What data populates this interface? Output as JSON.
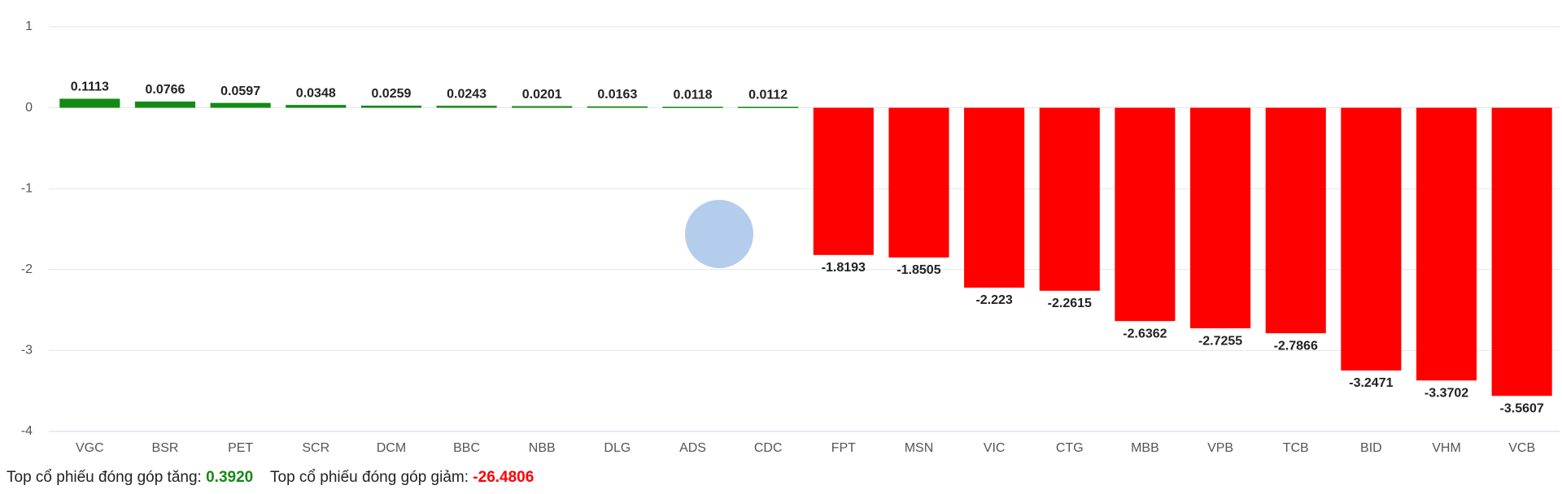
{
  "chart_data": {
    "type": "bar",
    "categories": [
      "VGC",
      "BSR",
      "PET",
      "SCR",
      "DCM",
      "BBC",
      "NBB",
      "DLG",
      "ADS",
      "CDC",
      "FPT",
      "MSN",
      "VIC",
      "CTG",
      "MBB",
      "VPB",
      "TCB",
      "BID",
      "VHM",
      "VCB"
    ],
    "values": [
      0.1113,
      0.0766,
      0.0597,
      0.0348,
      0.0259,
      0.0243,
      0.0201,
      0.0163,
      0.0118,
      0.0112,
      -1.8193,
      -1.8505,
      -2.223,
      -2.2615,
      -2.6362,
      -2.7255,
      -2.7866,
      -3.2471,
      -3.3702,
      -3.5607
    ],
    "positive_color": "#138a13",
    "negative_color": "#ff0000",
    "ylim": [
      -4,
      1
    ],
    "yticks": [
      -4,
      -3,
      -2,
      -1,
      0,
      1
    ],
    "grid": true
  },
  "footer": {
    "gain_label": "Top cổ phiếu đóng góp tăng:",
    "gain_value": "0.3920",
    "loss_label": "Top cổ phiếu đóng góp giảm:",
    "loss_value": "-26.4806"
  }
}
